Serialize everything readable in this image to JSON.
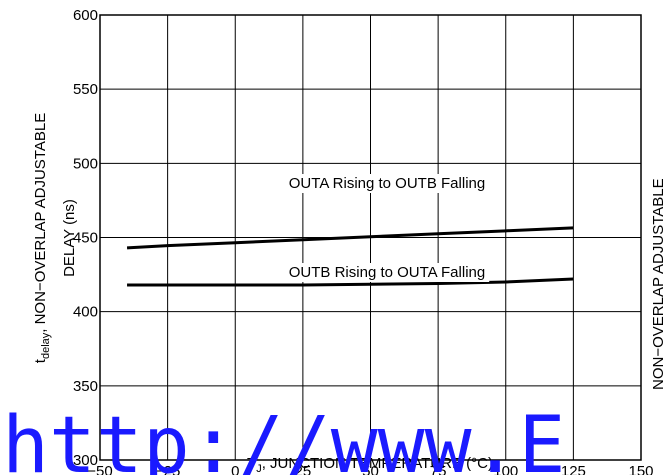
{
  "chart_data": {
    "type": "line",
    "xlabel": {
      "main": "T",
      "sub": "J",
      "rest": ", JUNCTION TEMPERATURE (°C)"
    },
    "ylabel": {
      "main": "t",
      "sub": "delay",
      "rest": ", NON−OVERLAP ADJUSTABLE",
      "line2": "DELAY (ns)"
    },
    "x": [
      -40,
      -25,
      0,
      25,
      50,
      75,
      100,
      125
    ],
    "series": [
      {
        "name": "OUTA Rising to OUTB Falling",
        "color": "#000000",
        "values": [
          443,
          444.5,
          446.5,
          448.5,
          450.5,
          452.5,
          454.5,
          456.5
        ]
      },
      {
        "name": "OUTB Rising to OUTA Falling",
        "color": "#000000",
        "values": [
          418,
          418,
          418,
          418,
          418.5,
          419,
          420,
          422
        ]
      }
    ],
    "xlim": [
      -50,
      150
    ],
    "xticks": [
      {
        "value": -50,
        "label": "−50"
      },
      {
        "value": -25,
        "label": "−25"
      },
      0,
      25,
      50,
      75,
      100,
      125,
      150
    ],
    "ylim": [
      300,
      600
    ],
    "yticks": [
      300,
      350,
      400,
      450,
      500,
      550,
      600
    ],
    "grid": true,
    "annotations": [
      "http://www.E",
      "NON−OVERLAP ADJUSTABLE"
    ]
  }
}
